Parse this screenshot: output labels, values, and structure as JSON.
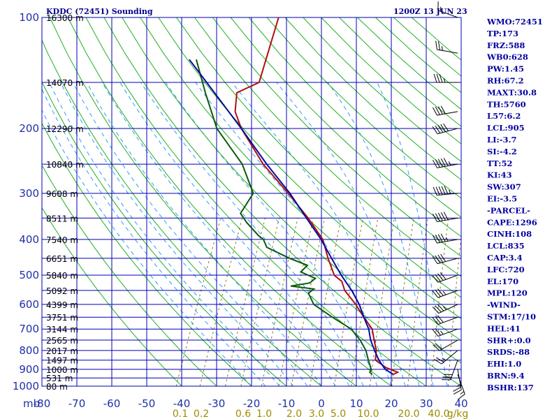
{
  "header": {
    "title": "KDDC (72451) Sounding",
    "time": "1200Z 13 JUN 23"
  },
  "chart_data": {
    "type": "skew-t",
    "xlabel": "",
    "ylabel": "",
    "pressure_axis_label": "mb",
    "pressure_ticks": [
      100,
      200,
      300,
      400,
      500,
      600,
      700,
      800,
      900,
      1000
    ],
    "temperature_ticks": [
      -80,
      -70,
      -60,
      -50,
      -40,
      -30,
      -20,
      -10,
      0,
      10,
      20,
      30,
      40
    ],
    "height_labels": [
      {
        "p": 100,
        "label": "16300 m"
      },
      {
        "p": 150,
        "label": "14070 m"
      },
      {
        "p": 200,
        "label": "12290 m"
      },
      {
        "p": 250,
        "label": "10840 m"
      },
      {
        "p": 300,
        "label": "9608 m"
      },
      {
        "p": 350,
        "label": "8511 m"
      },
      {
        "p": 400,
        "label": "7540 m"
      },
      {
        "p": 450,
        "label": "6651 m"
      },
      {
        "p": 500,
        "label": "5840 m"
      },
      {
        "p": 550,
        "label": "5092 m"
      },
      {
        "p": 600,
        "label": "4399 m"
      },
      {
        "p": 650,
        "label": "3751 m"
      },
      {
        "p": 700,
        "label": "3144 m"
      },
      {
        "p": 750,
        "label": "2565 m"
      },
      {
        "p": 800,
        "label": "2017 m"
      },
      {
        "p": 850,
        "label": "1497 m"
      },
      {
        "p": 900,
        "label": "1000 m"
      },
      {
        "p": 950,
        "label": "531 m"
      },
      {
        "p": 1000,
        "label": "80 m"
      }
    ],
    "mixing_ratio_labels": [
      "0.1",
      "0.2",
      "0.6",
      "1.0",
      "2.0",
      "3.0",
      "5.0",
      "10.0",
      "20.0",
      "40.0",
      "g/kg"
    ],
    "series": [
      {
        "name": "",
        "color": "#b01010",
        "points": [
          [
            929,
            19
          ],
          [
            917,
            20
          ],
          [
            890,
            16
          ],
          [
            850,
            12
          ],
          [
            800,
            11
          ],
          [
            750,
            9
          ],
          [
            700,
            7
          ],
          [
            650,
            3
          ],
          [
            600,
            -1
          ],
          [
            550,
            -6
          ],
          [
            520,
            -8
          ],
          [
            500,
            -11
          ],
          [
            450,
            -15
          ],
          [
            400,
            -19
          ],
          [
            350,
            -26
          ],
          [
            300,
            -35
          ],
          [
            250,
            -46
          ],
          [
            200,
            -57
          ],
          [
            180,
            -61
          ],
          [
            160,
            -63
          ],
          [
            150,
            -58
          ],
          [
            100,
            -61
          ]
        ]
      },
      {
        "name": "",
        "color": "#0a5a0a",
        "points": [
          [
            929,
            13
          ],
          [
            917,
            12
          ],
          [
            900,
            12
          ],
          [
            850,
            10
          ],
          [
            800,
            8
          ],
          [
            750,
            5
          ],
          [
            700,
            1
          ],
          [
            650,
            -6
          ],
          [
            600,
            -13
          ],
          [
            560,
            -16
          ],
          [
            545,
            -15
          ],
          [
            535,
            -22
          ],
          [
            525,
            -17
          ],
          [
            510,
            -16
          ],
          [
            490,
            -21
          ],
          [
            470,
            -20
          ],
          [
            450,
            -26
          ],
          [
            420,
            -34
          ],
          [
            400,
            -36
          ],
          [
            390,
            -38
          ],
          [
            360,
            -43
          ],
          [
            340,
            -46
          ],
          [
            300,
            -45
          ],
          [
            250,
            -52
          ],
          [
            200,
            -64
          ],
          [
            160,
            -72
          ],
          [
            130,
            -79
          ]
        ]
      },
      {
        "name": "",
        "color": "#0a0aa0",
        "points": [
          [
            929,
            19
          ],
          [
            900,
            16
          ],
          [
            850,
            13
          ],
          [
            800,
            10.5
          ],
          [
            750,
            8
          ],
          [
            700,
            6
          ],
          [
            650,
            3
          ],
          [
            600,
            0
          ],
          [
            550,
            -4
          ],
          [
            500,
            -9
          ],
          [
            450,
            -14
          ],
          [
            400,
            -19.5
          ],
          [
            350,
            -26.5
          ],
          [
            300,
            -34.5
          ],
          [
            250,
            -45
          ],
          [
            200,
            -57
          ],
          [
            150,
            -73
          ],
          [
            130,
            -81
          ]
        ]
      }
    ],
    "wind_barbs": [
      {
        "p": 929,
        "dir": 160,
        "spd": 15
      },
      {
        "p": 900,
        "dir": 170,
        "spd": 25
      },
      {
        "p": 850,
        "dir": 200,
        "spd": 30
      },
      {
        "p": 800,
        "dir": 230,
        "spd": 25
      },
      {
        "p": 750,
        "dir": 240,
        "spd": 20
      },
      {
        "p": 700,
        "dir": 250,
        "spd": 25
      },
      {
        "p": 650,
        "dir": 250,
        "spd": 30
      },
      {
        "p": 600,
        "dir": 245,
        "spd": 35
      },
      {
        "p": 550,
        "dir": 250,
        "spd": 35
      },
      {
        "p": 500,
        "dir": 250,
        "spd": 40
      },
      {
        "p": 450,
        "dir": 255,
        "spd": 40
      },
      {
        "p": 400,
        "dir": 260,
        "spd": 45
      },
      {
        "p": 350,
        "dir": 260,
        "spd": 50
      },
      {
        "p": 300,
        "dir": 265,
        "spd": 55
      },
      {
        "p": 250,
        "dir": 260,
        "spd": 55
      },
      {
        "p": 200,
        "dir": 255,
        "spd": 50
      },
      {
        "p": 180,
        "dir": 260,
        "spd": 40
      },
      {
        "p": 150,
        "dir": 270,
        "spd": 35
      },
      {
        "p": 125,
        "dir": 280,
        "spd": 25
      },
      {
        "p": 100,
        "dir": 290,
        "spd": 15
      }
    ],
    "colors": {
      "grid": "#0000b4",
      "dry_adiabat": "#20b020",
      "moist_adiabat": "#3399ff",
      "mixing_ratio": "#8a7a20"
    }
  },
  "indices": [
    "WMO:72451",
    "TP:173",
    "FRZ:588",
    "WB0:628",
    "PW:1.45",
    "RH:67.2",
    "MAXT:30.8",
    "TH:5760",
    "L57:6.2",
    "LCL:905",
    "LI:-3.7",
    "SI:-4.2",
    "TT:52",
    "KI:43",
    "SW:307",
    "EI:-3.5",
    "-PARCEL-",
    "CAPE:1296",
    "CINH:108",
    "LCL:835",
    "CAP:3.4",
    "LFC:720",
    "EL:170",
    "MPL:120",
    "-WIND-",
    "STM:17/10",
    "HEL:41",
    "SHR+:0.0",
    "SRDS:-88",
    "EHI:1.0",
    "BRN:9.4",
    "BSHR:137"
  ]
}
